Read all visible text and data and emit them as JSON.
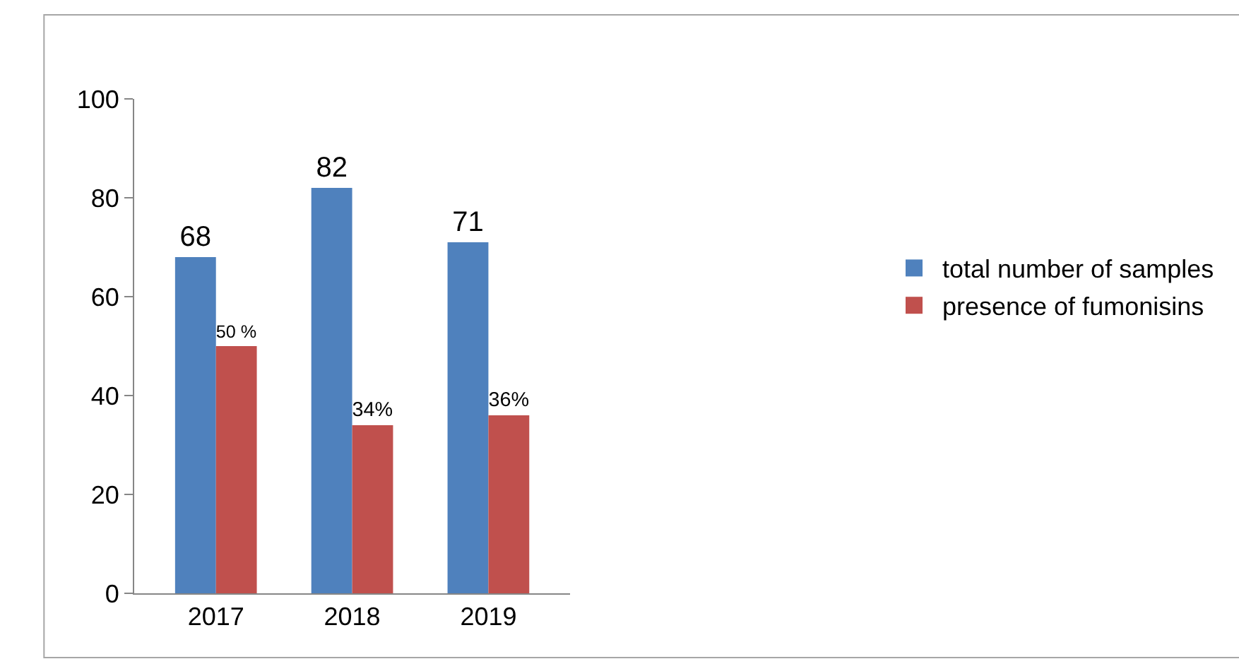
{
  "chart_data": {
    "type": "bar",
    "categories": [
      "2017",
      "2018",
      "2019"
    ],
    "series": [
      {
        "name": "total number of samples",
        "color": "#4f81bd",
        "values": [
          68,
          82,
          71
        ],
        "value_labels": [
          "68",
          "82",
          "71"
        ]
      },
      {
        "name": "presence of fumonisins",
        "color": "#c0504d",
        "values": [
          50,
          34,
          36
        ],
        "value_labels": [
          "50 %",
          "34%",
          "36%"
        ]
      }
    ],
    "ylim": [
      0,
      100
    ],
    "yticks": [
      0,
      20,
      40,
      60,
      80,
      100
    ],
    "grid": false,
    "legend": "right"
  }
}
